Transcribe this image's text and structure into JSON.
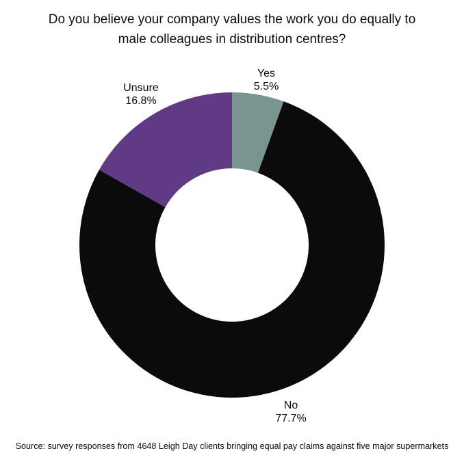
{
  "chart_data": {
    "type": "pie",
    "subtype": "donut",
    "title": "Do you believe your company values the work you do equally to male colleagues in distribution centres?",
    "title_lines": [
      "Do you believe your company values the work you do equally to",
      "male colleagues in distribution centres?"
    ],
    "categories": [
      "Yes",
      "No",
      "Unsure"
    ],
    "values": [
      5.5,
      77.7,
      16.8
    ],
    "unit": "%",
    "labels": [
      "5.5%",
      "77.7%",
      "16.8%"
    ],
    "colors": [
      "#7a9590",
      "#0b0b0b",
      "#603a84"
    ],
    "start_angle_deg": 0,
    "direction": "clockwise",
    "legend": "none (direct labels)",
    "source": "Source: survey responses from 4648 Leigh Day clients bringing equal pay claims against five major supermarkets"
  },
  "slices": [
    {
      "name": "Yes",
      "pct": "5.5%"
    },
    {
      "name": "No",
      "pct": "77.7%"
    },
    {
      "name": "Unsure",
      "pct": "16.8%"
    }
  ]
}
